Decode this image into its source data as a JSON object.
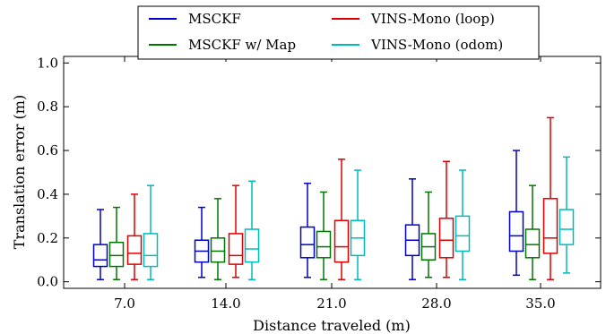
{
  "chart_data": {
    "type": "box",
    "xlabel": "Distance traveled (m)",
    "ylabel": "Translation error (m)",
    "ylim": [
      -0.03,
      1.03
    ],
    "yticks": [
      "0.0",
      "0.2",
      "0.4",
      "0.6",
      "0.8",
      "1.0"
    ],
    "categories": [
      "7.0",
      "14.0",
      "21.0",
      "28.0",
      "35.0"
    ],
    "legend": {
      "placement": "top-center",
      "columns": 2
    },
    "series": [
      {
        "name": "MSCKF",
        "color": "#0000cc",
        "boxes": [
          {
            "whislo": 0.01,
            "q1": 0.07,
            "med": 0.1,
            "q3": 0.17,
            "whishi": 0.33
          },
          {
            "whislo": 0.02,
            "q1": 0.09,
            "med": 0.14,
            "q3": 0.19,
            "whishi": 0.34
          },
          {
            "whislo": 0.02,
            "q1": 0.11,
            "med": 0.17,
            "q3": 0.25,
            "whishi": 0.45
          },
          {
            "whislo": 0.01,
            "q1": 0.12,
            "med": 0.19,
            "q3": 0.26,
            "whishi": 0.47
          },
          {
            "whislo": 0.03,
            "q1": 0.14,
            "med": 0.21,
            "q3": 0.32,
            "whishi": 0.6
          }
        ]
      },
      {
        "name": "VINS-Mono (loop)",
        "color": "#dd0000",
        "boxes": [
          {
            "whislo": 0.01,
            "q1": 0.08,
            "med": 0.13,
            "q3": 0.21,
            "whishi": 0.4
          },
          {
            "whislo": 0.02,
            "q1": 0.08,
            "med": 0.12,
            "q3": 0.22,
            "whishi": 0.44
          },
          {
            "whislo": 0.01,
            "q1": 0.09,
            "med": 0.16,
            "q3": 0.28,
            "whishi": 0.56
          },
          {
            "whislo": 0.02,
            "q1": 0.11,
            "med": 0.19,
            "q3": 0.29,
            "whishi": 0.55
          },
          {
            "whislo": 0.01,
            "q1": 0.13,
            "med": 0.2,
            "q3": 0.38,
            "whishi": 0.75
          }
        ]
      },
      {
        "name": "MSCKF w/ Map",
        "color": "#007700",
        "boxes": [
          {
            "whislo": 0.01,
            "q1": 0.07,
            "med": 0.12,
            "q3": 0.18,
            "whishi": 0.34
          },
          {
            "whislo": 0.01,
            "q1": 0.09,
            "med": 0.14,
            "q3": 0.2,
            "whishi": 0.38
          },
          {
            "whislo": 0.01,
            "q1": 0.11,
            "med": 0.16,
            "q3": 0.23,
            "whishi": 0.41
          },
          {
            "whislo": 0.02,
            "q1": 0.1,
            "med": 0.16,
            "q3": 0.22,
            "whishi": 0.41
          },
          {
            "whislo": 0.01,
            "q1": 0.11,
            "med": 0.17,
            "q3": 0.24,
            "whishi": 0.44
          }
        ]
      },
      {
        "name": "VINS-Mono (odom)",
        "color": "#00bbbb",
        "boxes": [
          {
            "whislo": 0.01,
            "q1": 0.07,
            "med": 0.12,
            "q3": 0.22,
            "whishi": 0.44
          },
          {
            "whislo": 0.01,
            "q1": 0.09,
            "med": 0.15,
            "q3": 0.24,
            "whishi": 0.46
          },
          {
            "whislo": 0.01,
            "q1": 0.12,
            "med": 0.2,
            "q3": 0.28,
            "whishi": 0.51
          },
          {
            "whislo": 0.01,
            "q1": 0.14,
            "med": 0.21,
            "q3": 0.3,
            "whishi": 0.51
          },
          {
            "whislo": 0.04,
            "q1": 0.17,
            "med": 0.24,
            "q3": 0.33,
            "whishi": 0.57
          }
        ]
      }
    ]
  }
}
